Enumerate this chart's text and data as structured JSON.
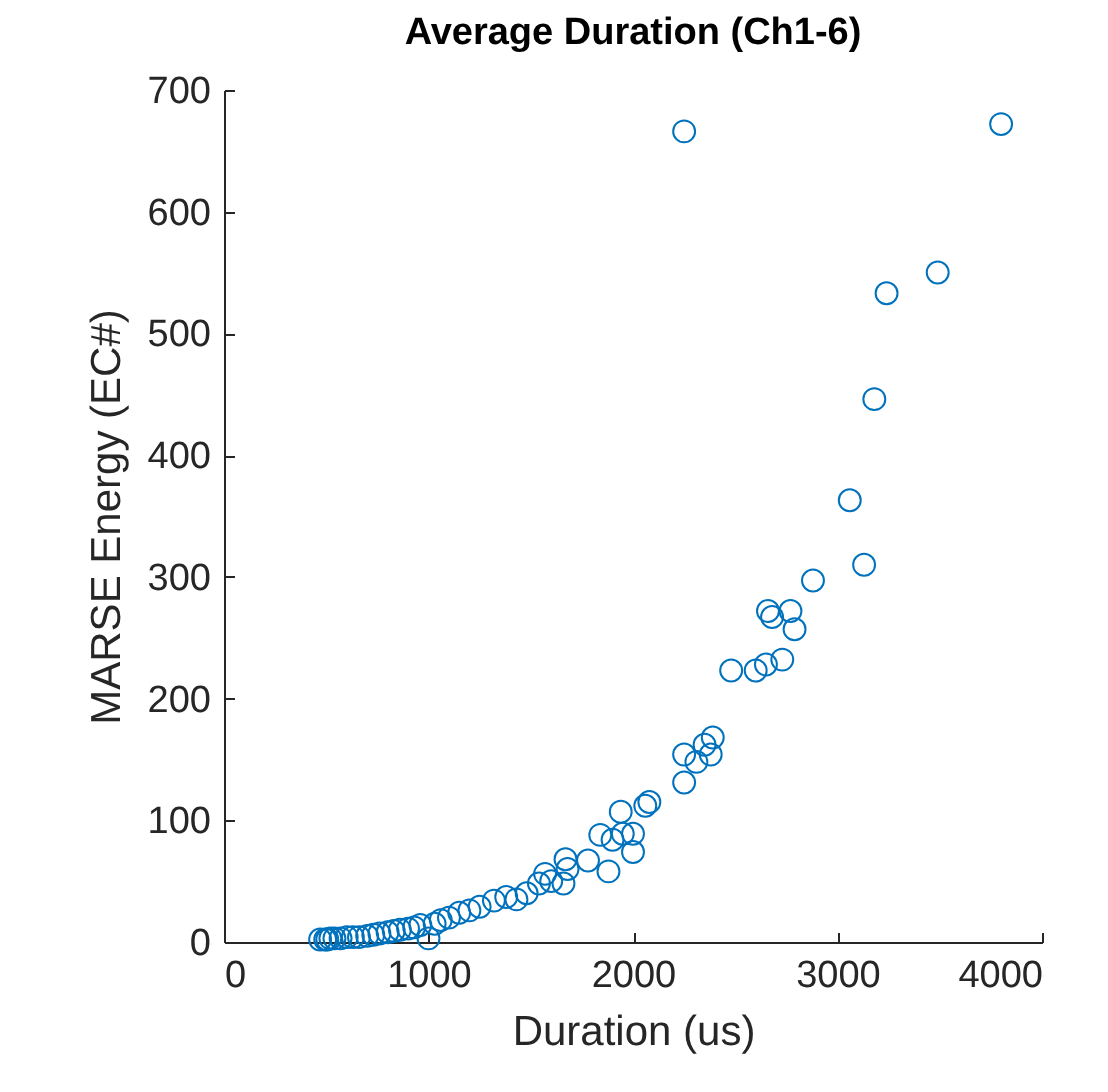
{
  "chart_data": {
    "type": "scatter",
    "title": "Average Duration (Ch1-6)",
    "xlabel": "Duration (us)",
    "ylabel": "MARSE Energy (EC#)",
    "x": [
      470,
      495,
      505,
      520,
      540,
      570,
      600,
      630,
      660,
      700,
      730,
      760,
      800,
      830,
      860,
      900,
      930,
      960,
      1000,
      1030,
      1060,
      1100,
      1150,
      1200,
      1250,
      1320,
      1380,
      1430,
      1480,
      1540,
      1570,
      1600,
      1660,
      1670,
      1680,
      1780,
      1840,
      1880,
      1900,
      1940,
      1950,
      2000,
      2000,
      2060,
      2080,
      2250,
      2250,
      2310,
      2350,
      2380,
      2390,
      2250,
      2480,
      2600,
      2650,
      2660,
      2680,
      2730,
      2770,
      2790,
      2880,
      3060,
      3130,
      3180,
      3240,
      3490,
      3800
    ],
    "values": [
      2,
      2,
      2,
      3,
      3,
      3,
      4,
      4,
      4,
      5,
      6,
      7,
      8,
      9,
      10,
      11,
      12,
      14,
      3,
      15,
      18,
      20,
      24,
      26,
      29,
      34,
      37,
      35,
      40,
      48,
      56,
      50,
      48,
      68,
      60,
      67,
      88,
      58,
      84,
      107,
      89,
      89,
      74,
      112,
      115,
      131,
      154,
      148,
      162,
      154,
      168,
      666,
      223,
      223,
      228,
      272,
      267,
      232,
      272,
      257,
      297,
      363,
      310,
      446,
      533,
      550,
      672
    ],
    "color": "#0072bd",
    "marker": "circle",
    "xlim": [
      0,
      4000
    ],
    "xticks": [
      0,
      1000,
      2000,
      3000,
      4000
    ],
    "ylim": [
      0,
      700
    ],
    "yticks": [
      0,
      100,
      200,
      300,
      400,
      500,
      600,
      700
    ],
    "grid": false
  }
}
